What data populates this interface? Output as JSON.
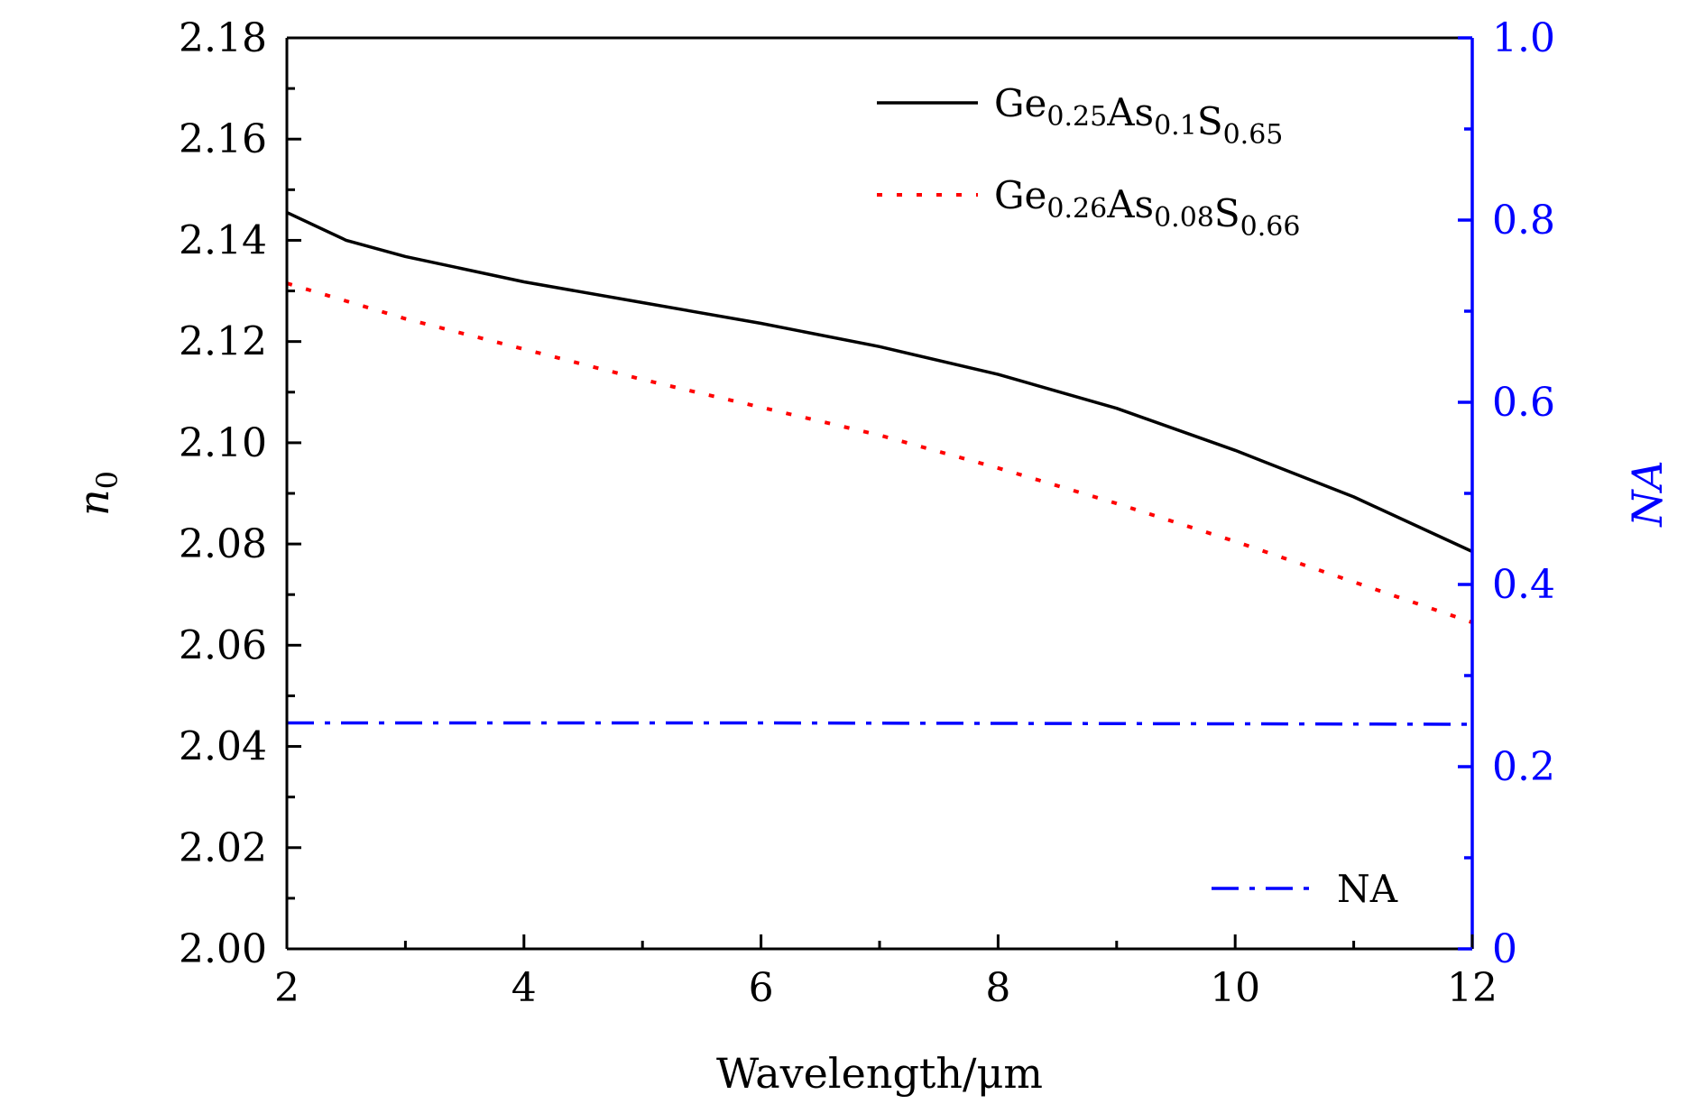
{
  "chart_data": {
    "type": "line",
    "title": "",
    "xlabel": "Wavelength/μm",
    "ylabel": "n",
    "ylabel_subscript": "0",
    "y2label": "NA",
    "xlim": [
      2,
      12
    ],
    "ylim": [
      2.0,
      2.18
    ],
    "y2lim": [
      0,
      1.0
    ],
    "x_ticks": [
      2,
      4,
      6,
      8,
      10,
      12
    ],
    "x_tick_labels": [
      "2",
      "4",
      "6",
      "8",
      "10",
      "12"
    ],
    "y_ticks": [
      2.0,
      2.02,
      2.04,
      2.06,
      2.08,
      2.1,
      2.12,
      2.14,
      2.16,
      2.18
    ],
    "y_tick_labels": [
      "2.00",
      "2.02",
      "2.04",
      "2.06",
      "2.08",
      "2.10",
      "2.12",
      "2.14",
      "2.16",
      "2.18"
    ],
    "y2_ticks": [
      0,
      0.2,
      0.4,
      0.6,
      0.8,
      1.0
    ],
    "y2_tick_labels": [
      "0",
      "0.2",
      "0.4",
      "0.6",
      "0.8",
      "1.0"
    ],
    "grid": false,
    "axis_colors": {
      "left": "#000000",
      "right": "#0000ff"
    },
    "series": [
      {
        "name": "Ge0.25As0.1S0.65",
        "legend_parts": [
          {
            "text": "Ge",
            "sub": "0.25"
          },
          {
            "text": "As",
            "sub": "0.1"
          },
          {
            "text": "S",
            "sub": "0.65"
          }
        ],
        "axis": "left",
        "style": "solid",
        "color": "#000000",
        "x": [
          2,
          2.5,
          3,
          4,
          5,
          6,
          7,
          8,
          9,
          10,
          11,
          12
        ],
        "y": [
          2.1455,
          2.14,
          2.1368,
          2.1318,
          2.1277,
          2.1236,
          2.119,
          2.1135,
          2.1068,
          2.0985,
          2.0893,
          2.0785
        ]
      },
      {
        "name": "Ge0.26As0.08S0.66",
        "legend_parts": [
          {
            "text": "Ge",
            "sub": "0.26"
          },
          {
            "text": "As",
            "sub": "0.08"
          },
          {
            "text": "S",
            "sub": "0.66"
          }
        ],
        "axis": "left",
        "style": "dotted",
        "color": "#ff0000",
        "x": [
          2,
          3,
          4,
          5,
          6,
          7,
          8,
          9,
          10,
          11,
          12
        ],
        "y": [
          2.1315,
          2.1245,
          2.1185,
          2.1125,
          2.107,
          2.1015,
          2.095,
          2.088,
          2.0805,
          2.0725,
          2.0645
        ]
      },
      {
        "name": "NA",
        "legend_parts": [
          {
            "text": "NA",
            "sub": ""
          }
        ],
        "axis": "right",
        "style": "dashdot",
        "color": "#0000ff",
        "x": [
          2,
          4,
          6,
          8,
          10,
          12
        ],
        "y": [
          0.248,
          0.248,
          0.248,
          0.2475,
          0.247,
          0.2465
        ]
      }
    ],
    "legend_position": "top-right"
  }
}
